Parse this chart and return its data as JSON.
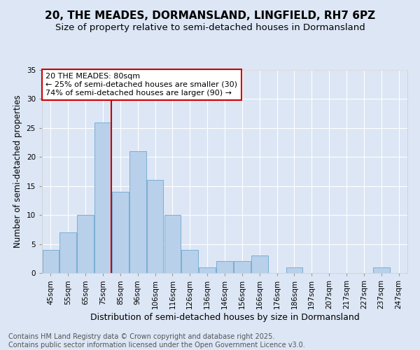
{
  "title": "20, THE MEADES, DORMANSLAND, LINGFIELD, RH7 6PZ",
  "subtitle": "Size of property relative to semi-detached houses in Dormansland",
  "xlabel": "Distribution of semi-detached houses by size in Dormansland",
  "ylabel": "Number of semi-detached properties",
  "categories": [
    "45sqm",
    "55sqm",
    "65sqm",
    "75sqm",
    "85sqm",
    "96sqm",
    "106sqm",
    "116sqm",
    "126sqm",
    "136sqm",
    "146sqm",
    "156sqm",
    "166sqm",
    "176sqm",
    "186sqm",
    "197sqm",
    "207sqm",
    "217sqm",
    "227sqm",
    "237sqm",
    "247sqm"
  ],
  "values": [
    4,
    7,
    10,
    26,
    14,
    21,
    16,
    10,
    4,
    1,
    2,
    2,
    3,
    0,
    1,
    0,
    0,
    0,
    0,
    1,
    0
  ],
  "bar_color": "#b8d0ea",
  "bar_edge_color": "#7aaed4",
  "bar_linewidth": 0.7,
  "background_color": "#dce6f5",
  "plot_background_color": "#dce6f5",
  "grid_color": "#ffffff",
  "annotation_line1": "20 THE MEADES: 80sqm",
  "annotation_line2": "← 25% of semi-detached houses are smaller (30)",
  "annotation_line3": "74% of semi-detached houses are larger (90) →",
  "annotation_box_color": "#ffffff",
  "annotation_border_color": "#cc0000",
  "vline_color": "#cc0000",
  "vline_linewidth": 1.5,
  "vline_pos": 3.5,
  "ylim": [
    0,
    35
  ],
  "yticks": [
    0,
    5,
    10,
    15,
    20,
    25,
    30,
    35
  ],
  "footer_text": "Contains HM Land Registry data © Crown copyright and database right 2025.\nContains public sector information licensed under the Open Government Licence v3.0.",
  "title_fontsize": 11,
  "subtitle_fontsize": 9.5,
  "xlabel_fontsize": 9,
  "ylabel_fontsize": 8.5,
  "tick_fontsize": 7.5,
  "annotation_fontsize": 8,
  "footer_fontsize": 7
}
